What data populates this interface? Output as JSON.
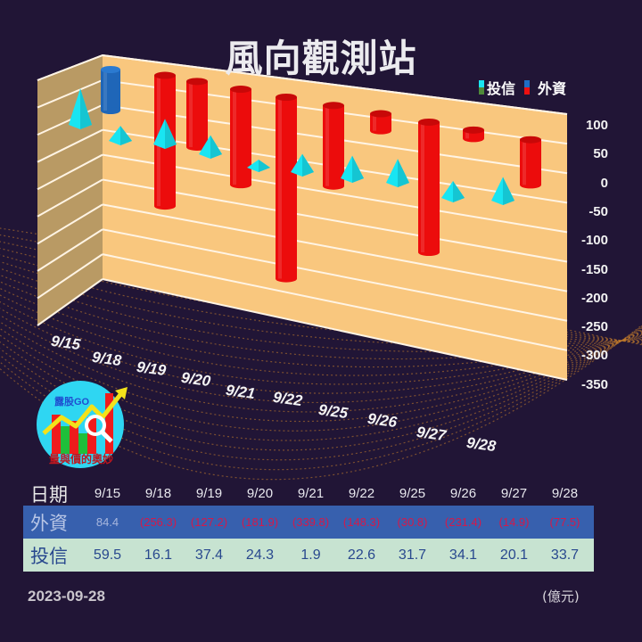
{
  "title": "風向觀測站",
  "legend": [
    {
      "label": "投信",
      "colors": [
        "#19e5f2",
        "#4f8a3a"
      ]
    },
    {
      "label": "外資",
      "colors": [
        "#1f6ec4",
        "#ee1010"
      ]
    }
  ],
  "colors": {
    "background": "#211536",
    "wall_back": "#f9c77e",
    "wall_side": "#b99a64",
    "gridline": "#fff4e4",
    "foreign_positive": "#1f66b8",
    "foreign_negative": "#ec0c0c",
    "trust": "#19e5f2",
    "table_fi_bg": "#3760ae",
    "table_it_bg": "#c7e3d1",
    "negative_text": "#d4194a",
    "positive_text": "#a7b6dd"
  },
  "chart_data": {
    "type": "bar",
    "title": "風向觀測站",
    "subtitle": "",
    "xlabel": "",
    "ylabel": "",
    "unit": "億元",
    "categories": [
      "9/15",
      "9/18",
      "9/19",
      "9/20",
      "9/21",
      "9/22",
      "9/25",
      "9/26",
      "9/27",
      "9/28"
    ],
    "series": [
      {
        "name": "外資",
        "style": "3d-cylinder",
        "values": [
          84.4,
          -256.3,
          -127.2,
          -181.9,
          -339.8,
          -148.3,
          -30.8,
          -231.4,
          -14.9,
          -77.5
        ]
      },
      {
        "name": "投信",
        "style": "3d-pyramid",
        "values": [
          59.5,
          16.1,
          37.4,
          24.3,
          1.9,
          22.6,
          31.7,
          34.1,
          20.1,
          33.7
        ]
      }
    ],
    "yticks": [
      100,
      50,
      0,
      -50,
      -100,
      -150,
      -200,
      -250,
      -300,
      -350
    ],
    "ylim": [
      -350,
      100
    ],
    "grid": true,
    "legend_position": "top-right"
  },
  "yaxis_labels": [
    "100",
    "50",
    "0",
    "-50",
    "-100",
    "-150",
    "-200",
    "-250",
    "-300",
    "-350"
  ],
  "xaxis_labels": [
    "9/15",
    "9/18",
    "9/19",
    "9/20",
    "9/21",
    "9/22",
    "9/25",
    "9/26",
    "9/27",
    "9/28"
  ],
  "logo": {
    "brand": "露股GO",
    "slogan": "量與價的奧妙"
  },
  "table": {
    "header_label": "日期",
    "dates": [
      "9/15",
      "9/18",
      "9/19",
      "9/20",
      "9/21",
      "9/22",
      "9/25",
      "9/26",
      "9/27",
      "9/28"
    ],
    "rows": [
      {
        "label": "外資",
        "values": [
          "84.4",
          "(256.3)",
          "(127.2)",
          "(181.9)",
          "(339.8)",
          "(148.3)",
          "(30.8)",
          "(231.4)",
          "(14.9)",
          "(77.5)"
        ]
      },
      {
        "label": "投信",
        "values": [
          "59.5",
          "16.1",
          "37.4",
          "24.3",
          "1.9",
          "22.6",
          "31.7",
          "34.1",
          "20.1",
          "33.7"
        ]
      }
    ]
  },
  "footer": {
    "date": "2023-09-28",
    "unit": "(億元)"
  }
}
